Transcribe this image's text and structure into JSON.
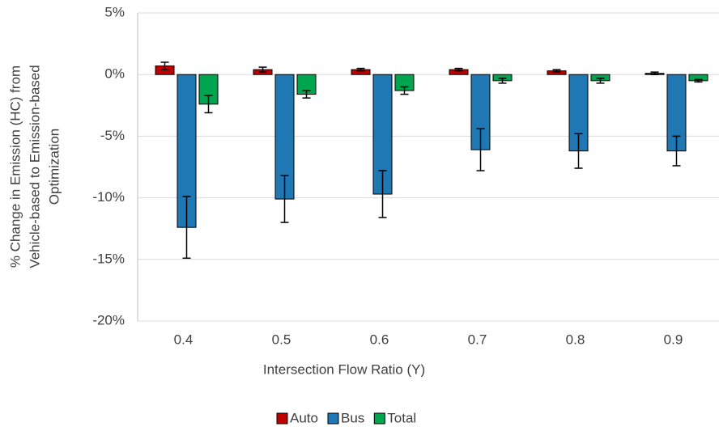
{
  "chart_data": {
    "type": "bar",
    "y_label": [
      "% Change in Emission (HC) from",
      "Vehicle-based to Emission-based",
      "Optimization"
    ],
    "x_label": "Intersection Flow Ratio (Y)",
    "categories": [
      "0.4",
      "0.5",
      "0.6",
      "0.7",
      "0.8",
      "0.9"
    ],
    "series": [
      {
        "name": "Auto",
        "color": "#c00000",
        "values": [
          0.7,
          0.4,
          0.4,
          0.4,
          0.3,
          0.1
        ],
        "errors": [
          0.3,
          0.2,
          0.1,
          0.1,
          0.1,
          0.1
        ]
      },
      {
        "name": "Bus",
        "color": "#1f77b4",
        "values": [
          -12.4,
          -10.1,
          -9.7,
          -6.1,
          -6.2,
          -6.2
        ],
        "errors": [
          2.5,
          1.9,
          1.9,
          1.7,
          1.4,
          1.2
        ]
      },
      {
        "name": "Total",
        "color": "#00a550",
        "values": [
          -2.4,
          -1.6,
          -1.3,
          -0.5,
          -0.5,
          -0.5
        ],
        "errors": [
          0.7,
          0.3,
          0.3,
          0.2,
          0.2,
          0.1
        ]
      }
    ],
    "ylim": [
      -20,
      5
    ],
    "yticks": [
      {
        "value": -20,
        "label": "-20%"
      },
      {
        "value": -15,
        "label": "-15%"
      },
      {
        "value": -10,
        "label": "-10%"
      },
      {
        "value": -5,
        "label": "-5%"
      },
      {
        "value": 0,
        "label": "0%"
      },
      {
        "value": 5,
        "label": "5%"
      }
    ],
    "grid": true,
    "legend": "bottom"
  }
}
